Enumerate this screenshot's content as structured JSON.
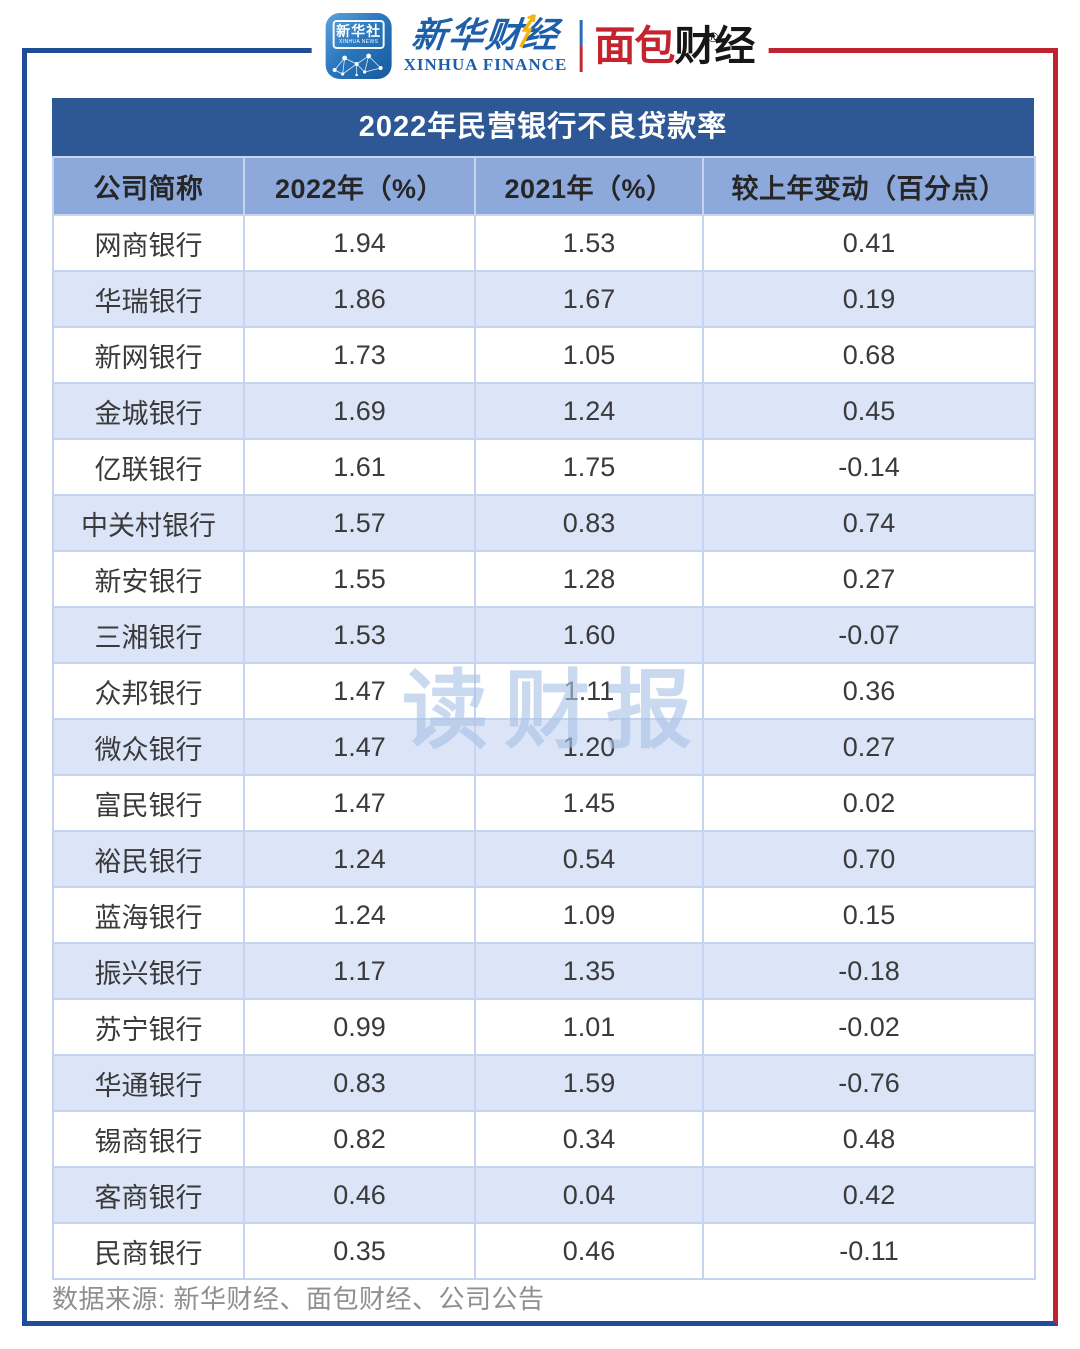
{
  "chart_data": {
    "type": "table",
    "title": "2022年民营银行不良贷款率",
    "columns": [
      "公司简称",
      "2022年（%）",
      "2021年（%）",
      "较上年变动（百分点）"
    ],
    "rows": [
      [
        "网商银行",
        "1.94",
        "1.53",
        "0.41"
      ],
      [
        "华瑞银行",
        "1.86",
        "1.67",
        "0.19"
      ],
      [
        "新网银行",
        "1.73",
        "1.05",
        "0.68"
      ],
      [
        "金城银行",
        "1.69",
        "1.24",
        "0.45"
      ],
      [
        "亿联银行",
        "1.61",
        "1.75",
        "-0.14"
      ],
      [
        "中关村银行",
        "1.57",
        "0.83",
        "0.74"
      ],
      [
        "新安银行",
        "1.55",
        "1.28",
        "0.27"
      ],
      [
        "三湘银行",
        "1.53",
        "1.60",
        "-0.07"
      ],
      [
        "众邦银行",
        "1.47",
        "1.11",
        "0.36"
      ],
      [
        "微众银行",
        "1.47",
        "1.20",
        "0.27"
      ],
      [
        "富民银行",
        "1.47",
        "1.45",
        "0.02"
      ],
      [
        "裕民银行",
        "1.24",
        "0.54",
        "0.70"
      ],
      [
        "蓝海银行",
        "1.24",
        "1.09",
        "0.15"
      ],
      [
        "振兴银行",
        "1.17",
        "1.35",
        "-0.18"
      ],
      [
        "苏宁银行",
        "0.99",
        "1.01",
        "-0.02"
      ],
      [
        "华通银行",
        "0.83",
        "1.59",
        "-0.76"
      ],
      [
        "锡商银行",
        "0.82",
        "0.34",
        "0.48"
      ],
      [
        "客商银行",
        "0.46",
        "0.04",
        "0.42"
      ],
      [
        "民商银行",
        "0.35",
        "0.46",
        "-0.11"
      ]
    ],
    "layout": {
      "row_banding": "alternating white and light blue",
      "header_row": true,
      "grid": true
    }
  },
  "brand": {
    "xinhua_icon": {
      "title": "新华社",
      "subtitle": "XINHUA NEWS"
    },
    "xinhua_finance": {
      "cn": "新华财经",
      "en": "XINHUA FINANCE"
    },
    "mianbao": {
      "red": "面包",
      "black": "财经",
      "reg": "®"
    }
  },
  "watermark": "读财报",
  "footer": {
    "source": "数据来源: 新华财经、面包财经、公司公告"
  },
  "colors": {
    "frame_blue": "#1F4E96",
    "frame_red": "#BE2430",
    "title_bg": "#2E5796",
    "header_bg": "#8DA9DC",
    "band_bg": "#DBE5F7",
    "grid": "#C5D5EF",
    "logo_blue": "#1E5FA9",
    "logo_red": "#C5242E",
    "watermark_blue": "#A9C3E6"
  }
}
